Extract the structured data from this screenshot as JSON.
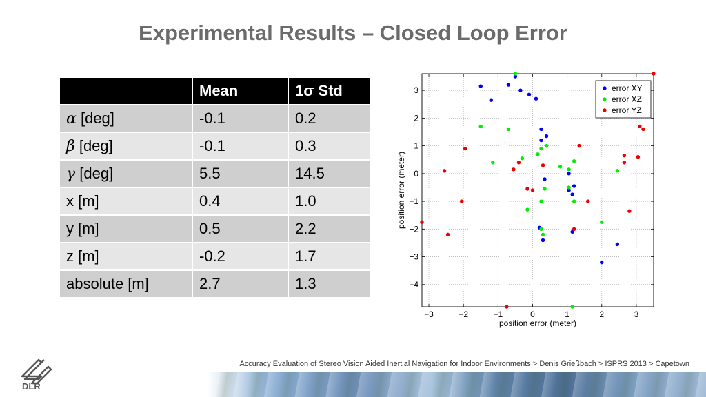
{
  "slide": {
    "title": "Experimental Results – Closed Loop Error",
    "footer": "Accuracy Evaluation of Stereo Vision Aided Inertial Navigation for Indoor Environments > Denis Grießbach > ISPRS 2013 > Capetown",
    "logo_text": "DLR"
  },
  "table": {
    "headers": [
      "",
      "Mean",
      "1σ Std"
    ],
    "rows": [
      {
        "symbol": "α",
        "label": " [deg]",
        "mean": "-0.1",
        "std": "0.2"
      },
      {
        "symbol": "β",
        "label": " [deg]",
        "mean": "-0.1",
        "std": "0.3"
      },
      {
        "symbol": "γ",
        "label": " [deg]",
        "mean": "5.5",
        "std": "14.5"
      },
      {
        "symbol": "",
        "label": "x [m]",
        "mean": "0.4",
        "std": "1.0"
      },
      {
        "symbol": "",
        "label": "y [m]",
        "mean": "0.5",
        "std": "2.2"
      },
      {
        "symbol": "",
        "label": "z [m]",
        "mean": "-0.2",
        "std": "1.7"
      },
      {
        "symbol": "",
        "label": "absolute [m]",
        "mean": "2.7",
        "std": "1.3"
      }
    ]
  },
  "chart_data": {
    "type": "scatter",
    "xlabel": "position error (meter)",
    "ylabel": "position error (meter)",
    "xlim": [
      -3.2,
      3.5
    ],
    "ylim": [
      -4.8,
      3.6
    ],
    "xticks": [
      -3,
      -2,
      -1,
      0,
      1,
      2,
      3
    ],
    "yticks": [
      -4,
      -3,
      -2,
      -1,
      0,
      1,
      2,
      3
    ],
    "xtick_labels": [
      "−3",
      "−2",
      "−1",
      "0",
      "1",
      "2",
      "3"
    ],
    "ytick_labels": [
      "−4",
      "−3",
      "−2",
      "−1",
      "0",
      "1",
      "2",
      "3"
    ],
    "grid": true,
    "legend_position": "top-right",
    "series": [
      {
        "name": "error XY",
        "color": "#0000ff",
        "points": [
          [
            -1.5,
            3.15
          ],
          [
            -1.2,
            2.65
          ],
          [
            -0.7,
            3.2
          ],
          [
            -0.5,
            3.5
          ],
          [
            -0.35,
            3.0
          ],
          [
            -0.1,
            2.85
          ],
          [
            0.1,
            2.7
          ],
          [
            0.25,
            1.6
          ],
          [
            0.25,
            1.2
          ],
          [
            0.4,
            1.35
          ],
          [
            0.35,
            -0.2
          ],
          [
            1.05,
            0.0
          ],
          [
            1.05,
            -0.6
          ],
          [
            1.15,
            -0.75
          ],
          [
            1.2,
            -0.45
          ],
          [
            0.2,
            -1.95
          ],
          [
            0.3,
            -2.4
          ],
          [
            1.15,
            -2.1
          ],
          [
            2.45,
            -2.55
          ],
          [
            2.0,
            -3.2
          ]
        ]
      },
      {
        "name": "error XZ",
        "color": "#00ee00",
        "points": [
          [
            -0.5,
            3.6
          ],
          [
            -1.5,
            1.7
          ],
          [
            -0.7,
            1.6
          ],
          [
            -1.15,
            0.4
          ],
          [
            -0.3,
            0.55
          ],
          [
            0.15,
            0.7
          ],
          [
            0.25,
            0.9
          ],
          [
            0.4,
            1.0
          ],
          [
            0.8,
            0.25
          ],
          [
            1.05,
            0.15
          ],
          [
            1.2,
            0.45
          ],
          [
            0.35,
            -0.55
          ],
          [
            1.05,
            -0.5
          ],
          [
            1.2,
            -1.0
          ],
          [
            0.25,
            -1.0
          ],
          [
            -0.15,
            -1.3
          ],
          [
            2.0,
            -1.75
          ],
          [
            2.45,
            0.1
          ],
          [
            0.25,
            -2.0
          ],
          [
            0.3,
            -2.2
          ],
          [
            1.15,
            -4.8
          ]
        ]
      },
      {
        "name": "error YZ",
        "color": "#ee0000",
        "points": [
          [
            3.5,
            3.6
          ],
          [
            3.1,
            1.7
          ],
          [
            3.2,
            1.6
          ],
          [
            2.65,
            0.65
          ],
          [
            2.65,
            0.4
          ],
          [
            3.05,
            0.6
          ],
          [
            2.8,
            -1.35
          ],
          [
            1.6,
            -1.0
          ],
          [
            1.35,
            1.0
          ],
          [
            1.2,
            -2.0
          ],
          [
            0.3,
            0.3
          ],
          [
            -0.4,
            0.4
          ],
          [
            -0.55,
            0.15
          ],
          [
            -0.15,
            -0.55
          ],
          [
            0.0,
            -0.6
          ],
          [
            -1.95,
            0.9
          ],
          [
            -2.55,
            0.1
          ],
          [
            -2.05,
            -1.0
          ],
          [
            -2.45,
            -2.2
          ],
          [
            -3.2,
            -1.75
          ],
          [
            -0.75,
            -4.8
          ]
        ]
      }
    ]
  }
}
